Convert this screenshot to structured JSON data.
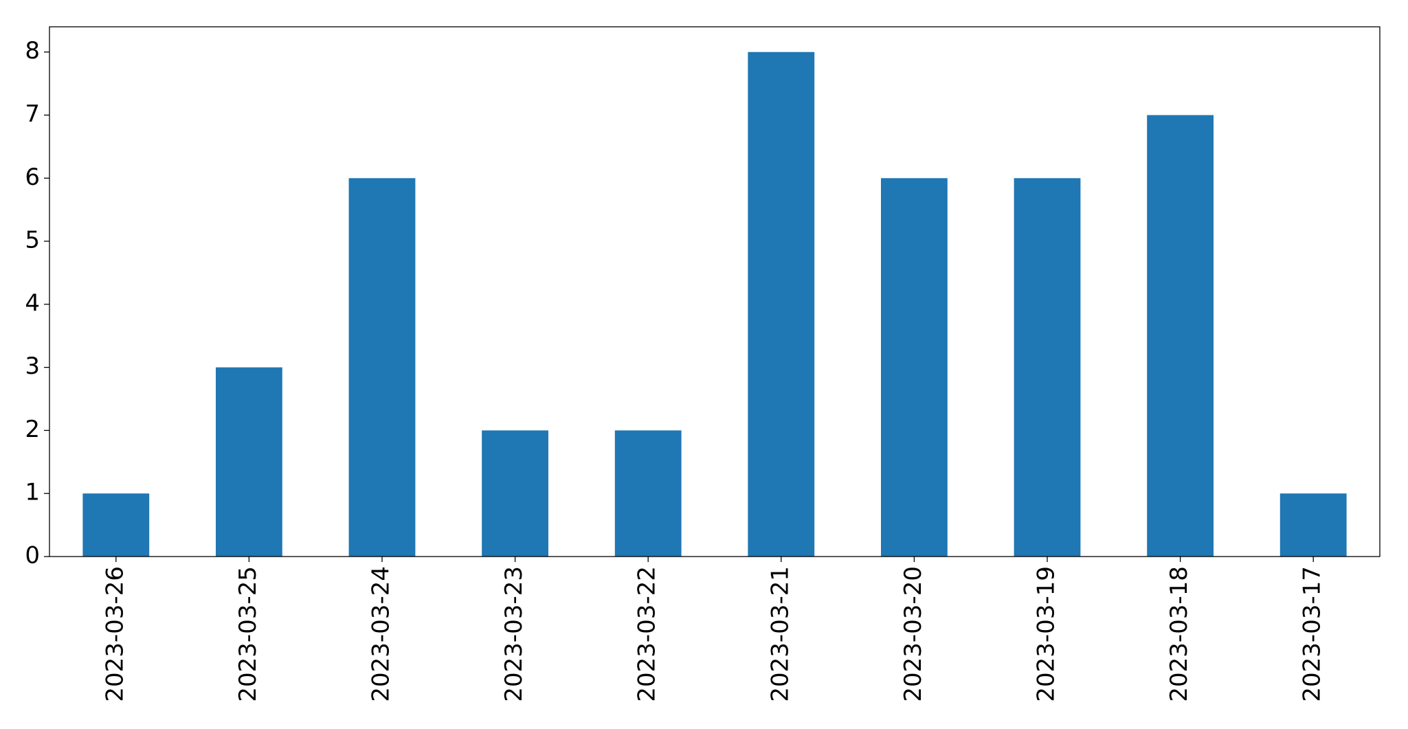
{
  "chart_data": {
    "type": "bar",
    "categories": [
      "2023-03-26",
      "2023-03-25",
      "2023-03-24",
      "2023-03-23",
      "2023-03-22",
      "2023-03-21",
      "2023-03-20",
      "2023-03-19",
      "2023-03-18",
      "2023-03-17"
    ],
    "values": [
      1,
      3,
      6,
      2,
      2,
      8,
      6,
      6,
      7,
      1
    ],
    "color": "#1f77b4",
    "ylim": [
      0,
      8.4
    ],
    "yticks": [
      0,
      1,
      2,
      3,
      4,
      5,
      6,
      7,
      8
    ],
    "grid": false
  }
}
